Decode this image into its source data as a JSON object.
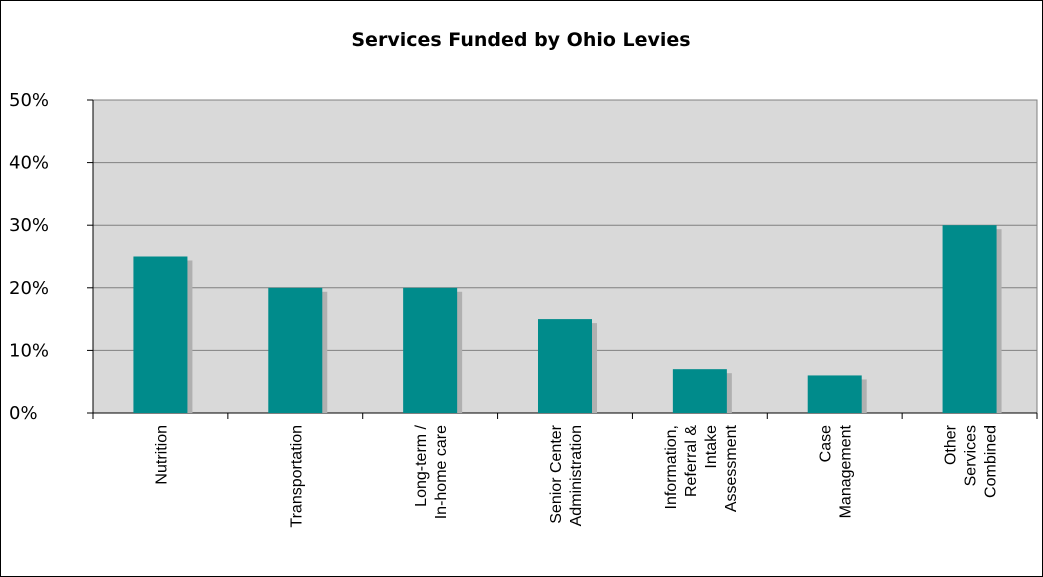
{
  "chart_data": {
    "type": "bar",
    "title": "Services Funded by Ohio Levies",
    "xlabel": "",
    "ylabel": "",
    "ylim": [
      0,
      50
    ],
    "y_ticks": [
      "0%",
      "10%",
      "20%",
      "30%",
      "40%",
      "50%"
    ],
    "categories": [
      "Nutrition",
      "Transportation",
      "Long-term / In-home care",
      "Senior Center Administration",
      "Information, Referral & Intake Assessment",
      "Case Management",
      "Other Services Combined"
    ],
    "category_lines": [
      [
        "Nutrition"
      ],
      [
        "Transportation"
      ],
      [
        "Long-term /",
        "In-home care"
      ],
      [
        "Senior Center",
        "Administration"
      ],
      [
        "Information,",
        "Referral &",
        "Intake",
        "Assessment"
      ],
      [
        "Case",
        "Management"
      ],
      [
        "Other",
        "Services",
        "Combined"
      ]
    ],
    "values": [
      25,
      20,
      20,
      15,
      7,
      6,
      30
    ],
    "grid": true,
    "legend": "none",
    "colors": {
      "bar": "#008B8B",
      "shadow": "#B0B0B0",
      "plot_bg": "#D9D9D9",
      "grid": "#808080"
    }
  }
}
